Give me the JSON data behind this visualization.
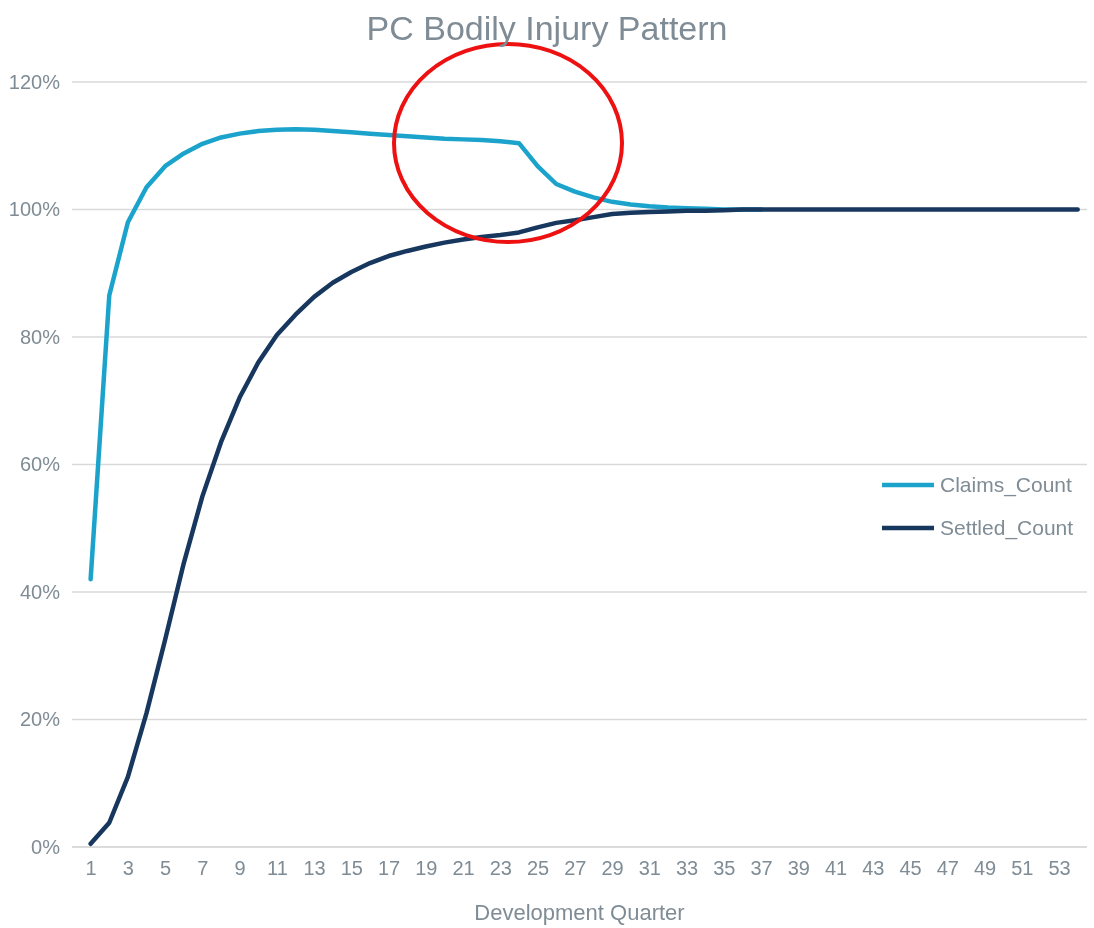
{
  "chart_data": {
    "type": "line",
    "title": "PC Bodily Injury Pattern",
    "xlabel": "Development Quarter",
    "x": [
      1,
      2,
      3,
      4,
      5,
      6,
      7,
      8,
      9,
      10,
      11,
      12,
      13,
      14,
      15,
      16,
      17,
      18,
      19,
      20,
      21,
      22,
      23,
      24,
      25,
      26,
      27,
      28,
      29,
      30,
      31,
      32,
      33,
      34,
      35,
      36,
      37,
      38,
      39,
      40,
      41,
      42,
      43,
      44,
      45,
      46,
      47,
      48,
      49,
      50,
      51,
      52,
      53,
      54
    ],
    "xlim": [
      0,
      54.5
    ],
    "xticks": [
      1,
      3,
      5,
      7,
      9,
      11,
      13,
      15,
      17,
      19,
      21,
      23,
      25,
      27,
      29,
      31,
      33,
      35,
      37,
      39,
      41,
      43,
      45,
      47,
      49,
      51,
      53
    ],
    "series": [
      {
        "name": "Claims_Count",
        "color": "#1ca3cc",
        "values": [
          42,
          86.5,
          98,
          103.5,
          106.8,
          108.8,
          110.3,
          111.3,
          111.9,
          112.3,
          112.5,
          112.6,
          112.5,
          112.3,
          112.1,
          111.9,
          111.7,
          111.5,
          111.3,
          111.1,
          111,
          110.9,
          110.7,
          110.4,
          106.8,
          104,
          102.8,
          101.9,
          101.2,
          100.8,
          100.5,
          100.3,
          100.2,
          100.1,
          100,
          100,
          100,
          null,
          null,
          null,
          null,
          null,
          null,
          null,
          null,
          null,
          null,
          null,
          null,
          null,
          null,
          null,
          null,
          null
        ]
      },
      {
        "name": "Settled_Count",
        "color": "#17375e",
        "values": [
          0.5,
          3.8,
          11,
          21,
          32.5,
          44.5,
          55,
          63.5,
          70.5,
          76,
          80.3,
          83.5,
          86.3,
          88.5,
          90.2,
          91.6,
          92.7,
          93.5,
          94.2,
          94.8,
          95.3,
          95.7,
          96,
          96.4,
          97.2,
          97.9,
          98.3,
          98.8,
          99.3,
          99.5,
          99.6,
          99.7,
          99.8,
          99.8,
          99.9,
          100,
          100,
          100,
          100,
          100,
          100,
          100,
          100,
          100,
          100,
          100,
          100,
          100,
          100,
          100,
          100,
          100,
          100,
          100
        ]
      }
    ],
    "ylim": [
      0,
      120
    ],
    "yticks": [
      {
        "value": 0,
        "label": "0%"
      },
      {
        "value": 20,
        "label": "20%"
      },
      {
        "value": 40,
        "label": "40%"
      },
      {
        "value": 60,
        "label": "60%"
      },
      {
        "value": 80,
        "label": "80%"
      },
      {
        "value": 100,
        "label": "100%"
      },
      {
        "value": 120,
        "label": "120%"
      }
    ],
    "grid": "y",
    "legend": "right",
    "marker": "none",
    "line_style": "solid"
  }
}
